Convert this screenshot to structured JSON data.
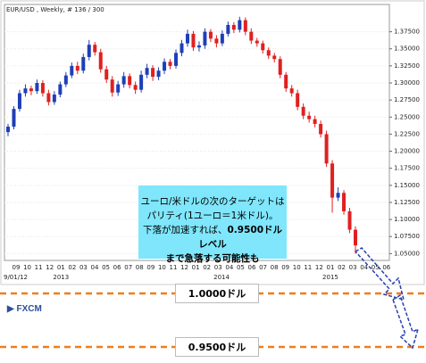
{
  "chart_data": {
    "type": "candlestick",
    "title": "EUR/USD , Weekly, # 136 / 300",
    "categories": [
      "09",
      "10",
      "11",
      "12",
      "01",
      "02",
      "03",
      "04",
      "05",
      "06",
      "07",
      "08",
      "09",
      "10",
      "11",
      "12",
      "01",
      "02",
      "03",
      "04",
      "05",
      "06",
      "07",
      "08",
      "09",
      "10",
      "11",
      "12",
      "01",
      "02",
      "03",
      "04",
      "05",
      "06"
    ],
    "period_labels": [
      "9/01/12",
      "2013",
      "2014",
      "2015"
    ],
    "candles": [
      [
        1.228,
        1.24,
        1.222,
        1.236
      ],
      [
        1.236,
        1.266,
        1.232,
        1.262
      ],
      [
        1.262,
        1.29,
        1.258,
        1.285
      ],
      [
        1.285,
        1.298,
        1.28,
        1.292
      ],
      [
        1.292,
        1.296,
        1.282,
        1.288
      ],
      [
        1.288,
        1.305,
        1.284,
        1.3
      ],
      [
        1.3,
        1.304,
        1.28,
        1.285
      ],
      [
        1.285,
        1.29,
        1.267,
        1.272
      ],
      [
        1.272,
        1.288,
        1.268,
        1.283
      ],
      [
        1.283,
        1.302,
        1.279,
        1.298
      ],
      [
        1.298,
        1.316,
        1.294,
        1.311
      ],
      [
        1.311,
        1.33,
        1.307,
        1.325
      ],
      [
        1.325,
        1.331,
        1.313,
        1.318
      ],
      [
        1.318,
        1.343,
        1.314,
        1.338
      ],
      [
        1.338,
        1.363,
        1.333,
        1.356
      ],
      [
        1.356,
        1.36,
        1.34,
        1.345
      ],
      [
        1.345,
        1.35,
        1.315,
        1.32
      ],
      [
        1.32,
        1.325,
        1.3,
        1.305
      ],
      [
        1.305,
        1.31,
        1.28,
        1.286
      ],
      [
        1.286,
        1.303,
        1.281,
        1.298
      ],
      [
        1.298,
        1.316,
        1.293,
        1.31
      ],
      [
        1.31,
        1.314,
        1.292,
        1.297
      ],
      [
        1.297,
        1.302,
        1.284,
        1.29
      ],
      [
        1.29,
        1.318,
        1.286,
        1.312
      ],
      [
        1.312,
        1.328,
        1.307,
        1.322
      ],
      [
        1.322,
        1.326,
        1.303,
        1.309
      ],
      [
        1.309,
        1.323,
        1.304,
        1.318
      ],
      [
        1.318,
        1.336,
        1.313,
        1.331
      ],
      [
        1.331,
        1.335,
        1.32,
        1.325
      ],
      [
        1.325,
        1.349,
        1.321,
        1.344
      ],
      [
        1.344,
        1.363,
        1.339,
        1.358
      ],
      [
        1.358,
        1.378,
        1.353,
        1.372
      ],
      [
        1.372,
        1.376,
        1.347,
        1.352
      ],
      [
        1.352,
        1.361,
        1.346,
        1.355
      ],
      [
        1.355,
        1.38,
        1.35,
        1.375
      ],
      [
        1.375,
        1.379,
        1.36,
        1.365
      ],
      [
        1.365,
        1.37,
        1.352,
        1.358
      ],
      [
        1.358,
        1.377,
        1.354,
        1.372
      ],
      [
        1.372,
        1.39,
        1.368,
        1.385
      ],
      [
        1.385,
        1.389,
        1.373,
        1.378
      ],
      [
        1.378,
        1.397,
        1.374,
        1.392
      ],
      [
        1.392,
        1.396,
        1.37,
        1.375
      ],
      [
        1.375,
        1.38,
        1.357,
        1.362
      ],
      [
        1.362,
        1.366,
        1.353,
        1.358
      ],
      [
        1.358,
        1.362,
        1.343,
        1.348
      ],
      [
        1.348,
        1.352,
        1.335,
        1.34
      ],
      [
        1.34,
        1.344,
        1.33,
        1.335
      ],
      [
        1.335,
        1.339,
        1.307,
        1.312
      ],
      [
        1.312,
        1.316,
        1.287,
        1.292
      ],
      [
        1.292,
        1.297,
        1.28,
        1.285
      ],
      [
        1.285,
        1.29,
        1.26,
        1.265
      ],
      [
        1.265,
        1.27,
        1.247,
        1.252
      ],
      [
        1.252,
        1.258,
        1.242,
        1.247
      ],
      [
        1.247,
        1.252,
        1.235,
        1.24
      ],
      [
        1.24,
        1.245,
        1.22,
        1.225
      ],
      [
        1.225,
        1.23,
        1.177,
        1.182
      ],
      [
        1.182,
        1.187,
        1.11,
        1.132
      ],
      [
        1.132,
        1.147,
        1.127,
        1.139
      ],
      [
        1.139,
        1.143,
        1.107,
        1.112
      ],
      [
        1.112,
        1.117,
        1.08,
        1.085
      ],
      [
        1.085,
        1.09,
        1.05,
        1.062
      ]
    ],
    "up_color": "#1f3fb8",
    "down_color": "#e02020",
    "ylim": [
      1.04,
      1.415
    ],
    "yticks": [
      {
        "value": 1.05,
        "label": "1.05000"
      },
      {
        "value": 1.075,
        "label": "1.07500"
      },
      {
        "value": 1.1,
        "label": "1.10000"
      },
      {
        "value": 1.125,
        "label": "1.12500"
      },
      {
        "value": 1.15,
        "label": "1.15000"
      },
      {
        "value": 1.175,
        "label": "1.17500"
      },
      {
        "value": 1.2,
        "label": "1.20000"
      },
      {
        "value": 1.225,
        "label": "1.22500"
      },
      {
        "value": 1.25,
        "label": "1.25000"
      },
      {
        "value": 1.275,
        "label": "1.27500"
      },
      {
        "value": 1.3,
        "label": "1.30000"
      },
      {
        "value": 1.325,
        "label": "1.32500"
      },
      {
        "value": 1.35,
        "label": "1.35000"
      },
      {
        "value": 1.375,
        "label": "1.37500"
      }
    ],
    "grid": true,
    "annotation": [
      "ユーロ/米ドルの次のターゲットは",
      "パリティ(1ユーロ＝1米ドル)。",
      "下落が加速すれば、",
      "0.9500ドルレベル",
      "まで急落する可能性も"
    ],
    "brand": "FXCM",
    "levels": [
      "1.0000ドル",
      "0.9500ドル"
    ]
  }
}
